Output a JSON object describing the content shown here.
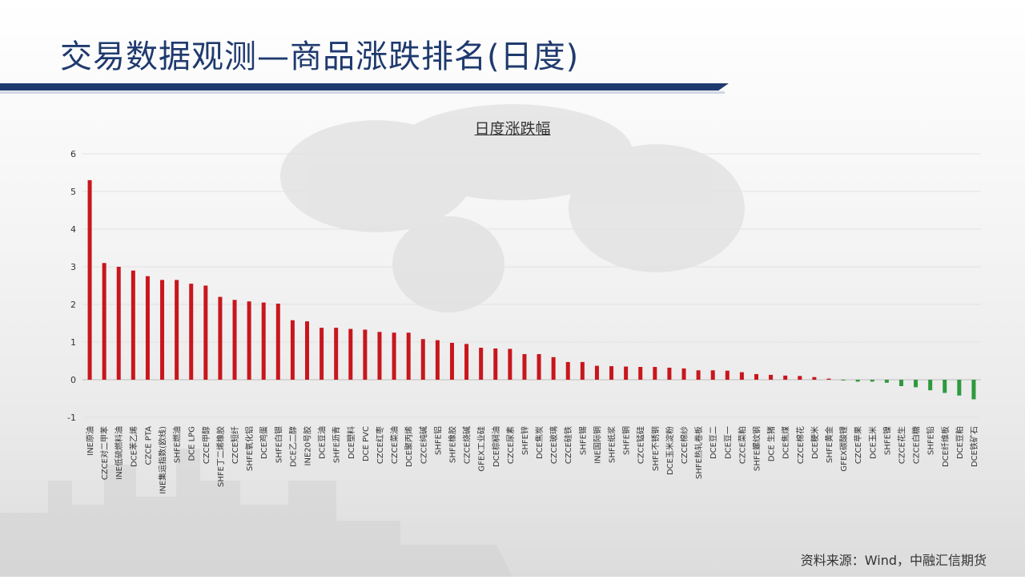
{
  "page": {
    "title": "交易数据观测—商品涨跌排名(日度)",
    "source": "资料来源：Wind，中融汇信期货"
  },
  "colors": {
    "up": "#c8161d",
    "down": "#2e9a3e",
    "title": "#1f3a6e"
  },
  "chart_data": {
    "type": "bar",
    "title": "日度涨跌幅",
    "xlabel": "",
    "ylabel": "",
    "ylim": [
      -1,
      6
    ],
    "yticks": [
      -1,
      0,
      1,
      2,
      3,
      4,
      5,
      6
    ],
    "grid": true,
    "categories": [
      "INE原油",
      "CZCE对二甲苯",
      "INE低硫燃料油",
      "DCE苯乙烯",
      "CZCE PTA",
      "INE集运指数(欧线)",
      "SHFE燃油",
      "DCE LPG",
      "CZCE甲醇",
      "SHFE丁二烯橡胶",
      "CZCE短纤",
      "SHFE氧化铝",
      "DCE鸡蛋",
      "SHFE白银",
      "DCE乙二醇",
      "INE20号胶",
      "DCE豆油",
      "SHFE沥青",
      "DCE塑料",
      "DCE PVC",
      "CZCE红枣",
      "CZCE菜油",
      "DCE聚丙烯",
      "CZCE纯碱",
      "SHFE铝",
      "SHFE橡胶",
      "CZCE烧碱",
      "GFEX工业硅",
      "DCE棕榈油",
      "CZCE尿素",
      "SHFE锌",
      "DCE焦炭",
      "CZCE玻璃",
      "CZCE硅铁",
      "SHFE锡",
      "INE国际铜",
      "SHFE纸浆",
      "SHFE铜",
      "CZCE锰硅",
      "SHFE不锈钢",
      "DCE玉米淀粉",
      "CZCE棉纱",
      "SHFE热轧卷板",
      "DCE豆二",
      "DCE豆一",
      "CZCE菜粕",
      "SHFE螺纹钢",
      "DCE 生猪",
      "DCE焦煤",
      "CZCE棉花",
      "DCE粳米",
      "SHFE黄金",
      "GFEX碳酸锂",
      "CZCE苹果",
      "DCE玉米",
      "SHFE镍",
      "CZCE花生",
      "CZCE白糖",
      "SHFE铅",
      "DCE纤维板",
      "DCE豆粕",
      "DCE铁矿石"
    ],
    "values": [
      5.3,
      3.1,
      3.0,
      2.9,
      2.75,
      2.65,
      2.65,
      2.55,
      2.5,
      2.2,
      2.12,
      2.08,
      2.05,
      2.02,
      1.58,
      1.55,
      1.38,
      1.38,
      1.35,
      1.33,
      1.27,
      1.25,
      1.25,
      1.08,
      1.05,
      0.98,
      0.95,
      0.85,
      0.83,
      0.82,
      0.68,
      0.68,
      0.6,
      0.47,
      0.47,
      0.37,
      0.36,
      0.35,
      0.34,
      0.34,
      0.32,
      0.3,
      0.25,
      0.25,
      0.24,
      0.2,
      0.15,
      0.13,
      0.11,
      0.1,
      0.07,
      0.03,
      -0.01,
      -0.05,
      -0.05,
      -0.08,
      -0.17,
      -0.2,
      -0.28,
      -0.35,
      -0.42,
      -0.52
    ]
  }
}
